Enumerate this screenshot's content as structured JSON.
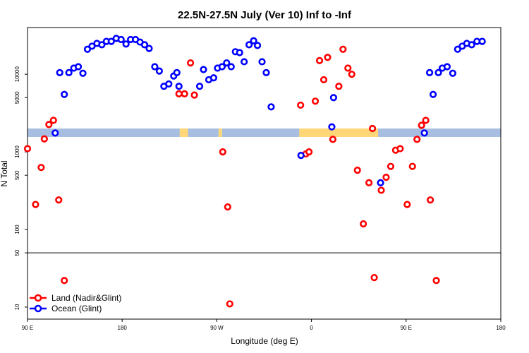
{
  "chart_data": {
    "type": "scatter",
    "title": "22.5N-27.5N July (Ver 10)   Inf to -Inf",
    "xlabel": "Longitude (deg E)",
    "ylabel": "N Total",
    "x_axis": {
      "range": [
        -90,
        180
      ],
      "ticks": [
        {
          "value": -90,
          "label": "90 E"
        },
        {
          "value": -36,
          "label": "180"
        },
        {
          "value": 18,
          "label": "90 W"
        },
        {
          "value": 72,
          "label": "0"
        },
        {
          "value": 126,
          "label": "90 E"
        },
        {
          "value": 180,
          "label": "180"
        }
      ]
    },
    "y_axis": {
      "scale": "log",
      "range": [
        7,
        40000
      ],
      "ticks": [
        {
          "value": 10,
          "label": "10"
        },
        {
          "value": 50,
          "label": "50"
        },
        {
          "value": 100,
          "label": "100"
        },
        {
          "value": 500,
          "label": "500"
        },
        {
          "value": 1000,
          "label": "1000"
        },
        {
          "value": 5000,
          "label": "5000"
        },
        {
          "value": 10000,
          "label": "10000"
        }
      ],
      "reference_line": 50
    },
    "series": [
      {
        "name": "Land (Nadir&Glint)",
        "color": "#ff0000",
        "points": [
          {
            "x": -90,
            "y": 1100
          },
          {
            "x": -85.4,
            "y": 210
          },
          {
            "x": -82.2,
            "y": 630
          },
          {
            "x": -80.4,
            "y": 1470
          },
          {
            "x": -77.8,
            "y": 2250
          },
          {
            "x": -75.2,
            "y": 2550
          },
          {
            "x": -72.2,
            "y": 240
          },
          {
            "x": -69,
            "y": 22
          },
          {
            "x": -3.6,
            "y": 5600
          },
          {
            "x": -0.4,
            "y": 5600
          },
          {
            "x": 3,
            "y": 14000
          },
          {
            "x": 5.2,
            "y": 5400
          },
          {
            "x": 21.4,
            "y": 1000
          },
          {
            "x": 24.2,
            "y": 195
          },
          {
            "x": 25.4,
            "y": 11
          },
          {
            "x": 65.8,
            "y": 4000
          },
          {
            "x": 68.8,
            "y": 940
          },
          {
            "x": 70.6,
            "y": 1000
          },
          {
            "x": 74.2,
            "y": 4500
          },
          {
            "x": 76.6,
            "y": 15000
          },
          {
            "x": 81.2,
            "y": 16500
          },
          {
            "x": 79,
            "y": 8500
          },
          {
            "x": 84.2,
            "y": 1450
          },
          {
            "x": 87.6,
            "y": 7000
          },
          {
            "x": 90,
            "y": 21000
          },
          {
            "x": 92.8,
            "y": 12000
          },
          {
            "x": 95,
            "y": 10000
          },
          {
            "x": 98.2,
            "y": 580
          },
          {
            "x": 101.6,
            "y": 118
          },
          {
            "x": 104.8,
            "y": 400
          },
          {
            "x": 107.8,
            "y": 24
          },
          {
            "x": 106.8,
            "y": 2000
          },
          {
            "x": 111.8,
            "y": 320
          },
          {
            "x": 114.6,
            "y": 470
          },
          {
            "x": 117.2,
            "y": 650
          },
          {
            "x": 120,
            "y": 1050
          },
          {
            "x": 122.6,
            "y": 1100
          },
          {
            "x": 126.6,
            "y": 210
          },
          {
            "x": 129.6,
            "y": 650
          },
          {
            "x": 132.2,
            "y": 1450
          },
          {
            "x": 134.8,
            "y": 2200
          },
          {
            "x": 137.2,
            "y": 2550
          },
          {
            "x": 139.8,
            "y": 240
          },
          {
            "x": 143.2,
            "y": 22
          }
        ]
      },
      {
        "name": "Ocean (Glint)",
        "color": "#0000ff",
        "points": [
          {
            "x": -74.2,
            "y": 1750
          },
          {
            "x": -71.6,
            "y": 10500
          },
          {
            "x": -69,
            "y": 5500
          },
          {
            "x": -66.4,
            "y": 10500
          },
          {
            "x": -63.6,
            "y": 12000
          },
          {
            "x": -61,
            "y": 12500
          },
          {
            "x": -58.4,
            "y": 10300
          },
          {
            "x": -55.8,
            "y": 21000
          },
          {
            "x": -53.2,
            "y": 23000
          },
          {
            "x": -50.4,
            "y": 25000
          },
          {
            "x": -47.6,
            "y": 24000
          },
          {
            "x": -45,
            "y": 26500
          },
          {
            "x": -42.2,
            "y": 26500
          },
          {
            "x": -39.4,
            "y": 29000
          },
          {
            "x": -36.6,
            "y": 28000
          },
          {
            "x": -33.8,
            "y": 24500
          },
          {
            "x": -31.2,
            "y": 28000
          },
          {
            "x": -28.4,
            "y": 28000
          },
          {
            "x": -25.8,
            "y": 26000
          },
          {
            "x": -23.2,
            "y": 24000
          },
          {
            "x": -20.6,
            "y": 21500
          },
          {
            "x": -17.4,
            "y": 12500
          },
          {
            "x": -14.8,
            "y": 11000
          },
          {
            "x": -12.2,
            "y": 7000
          },
          {
            "x": -9.4,
            "y": 7500
          },
          {
            "x": -6.6,
            "y": 9500
          },
          {
            "x": -4.8,
            "y": 10500
          },
          {
            "x": -3.6,
            "y": 7000
          },
          {
            "x": 8.2,
            "y": 7000
          },
          {
            "x": 10.4,
            "y": 11500
          },
          {
            "x": 13.4,
            "y": 8500
          },
          {
            "x": 16.2,
            "y": 9000
          },
          {
            "x": 18.4,
            "y": 12000
          },
          {
            "x": 21,
            "y": 12500
          },
          {
            "x": 23.6,
            "y": 14000
          },
          {
            "x": 26.2,
            "y": 12500
          },
          {
            "x": 28.6,
            "y": 19500
          },
          {
            "x": 31,
            "y": 19000
          },
          {
            "x": 33.6,
            "y": 14500
          },
          {
            "x": 36.4,
            "y": 24000
          },
          {
            "x": 39,
            "y": 27000
          },
          {
            "x": 41.2,
            "y": 23500
          },
          {
            "x": 43.8,
            "y": 14500
          },
          {
            "x": 46.2,
            "y": 10500
          },
          {
            "x": 49,
            "y": 3800
          },
          {
            "x": 66,
            "y": 900
          },
          {
            "x": 83.6,
            "y": 2100
          },
          {
            "x": 84.6,
            "y": 5000
          },
          {
            "x": 111.4,
            "y": 400
          },
          {
            "x": 136.4,
            "y": 1750
          },
          {
            "x": 139.4,
            "y": 10500
          },
          {
            "x": 141.4,
            "y": 5500
          },
          {
            "x": 144.4,
            "y": 10500
          },
          {
            "x": 146.6,
            "y": 12000
          },
          {
            "x": 149.4,
            "y": 12500
          },
          {
            "x": 152.6,
            "y": 10300
          },
          {
            "x": 155.4,
            "y": 21000
          },
          {
            "x": 158,
            "y": 23000
          },
          {
            "x": 160.6,
            "y": 25000
          },
          {
            "x": 163.4,
            "y": 24000
          },
          {
            "x": 166.4,
            "y": 26500
          },
          {
            "x": 169.4,
            "y": 26500
          }
        ]
      }
    ],
    "legend": {
      "position": "bottom-left",
      "entries": [
        "Land (Nadir&Glint)",
        "Ocean (Glint)"
      ]
    },
    "map_strip": {
      "ocean_color": "#a8bee0",
      "land_color": "#ffd778",
      "land_segments": [
        {
          "from": -3.2,
          "to": 1.6
        },
        {
          "from": 19,
          "to": 21
        },
        {
          "from": 65,
          "to": 110
        }
      ]
    }
  }
}
